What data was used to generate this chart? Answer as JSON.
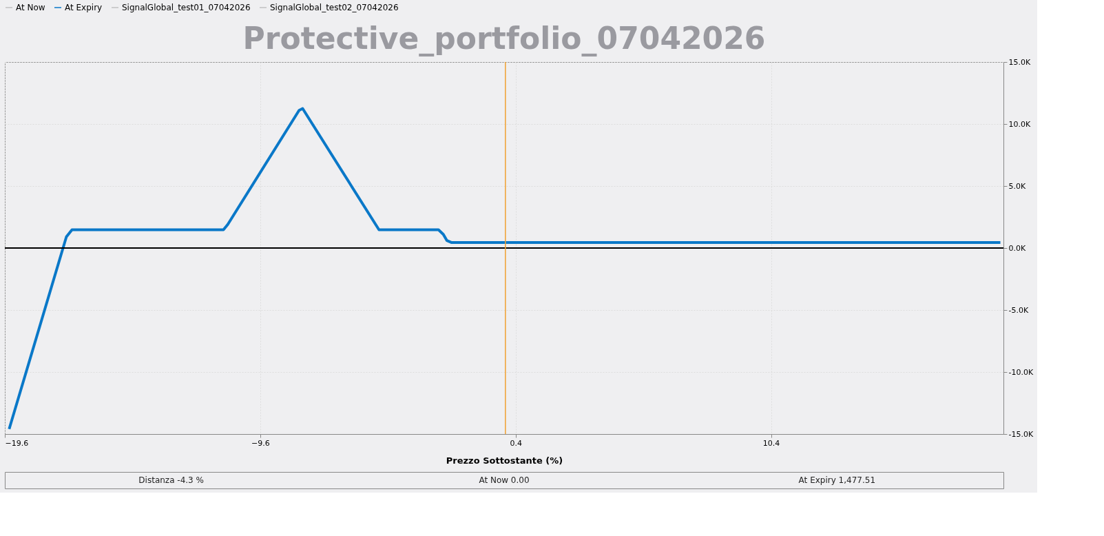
{
  "chart_data": {
    "type": "line",
    "title": "Protective_portfolio_07042026",
    "xlabel": "Prezzo Sottostante (%)",
    "series": [
      {
        "name": "At Now",
        "color": "#c0c0c0"
      },
      {
        "name": "At Expiry",
        "color": "#0a78c8",
        "x": [
          -19.43,
          -17.19,
          -16.97,
          -11.04,
          -10.87,
          -8.08,
          -7.94,
          -4.95,
          -2.62,
          -2.43,
          -2.29,
          -2.12,
          19.38
        ],
        "values": [
          -14600,
          900,
          1470,
          1470,
          1900,
          11100,
          11250,
          1470,
          1470,
          1100,
          600,
          450,
          450
        ]
      },
      {
        "name": "SignalGlobal_test01_07042026",
        "color": "#c0c0c0"
      },
      {
        "name": "SignalGlobal_test02_07042026",
        "color": "#c0c0c0"
      }
    ],
    "xlim": [
      -19.6,
      19.5
    ],
    "xticks": [
      -19.6,
      -9.6,
      0.4,
      10.4
    ],
    "ylim": [
      -15000,
      15000
    ],
    "yticks": [
      {
        "value": -15000,
        "label": "-15.0K"
      },
      {
        "value": -10000,
        "label": "-10.0K"
      },
      {
        "value": -5000,
        "label": "-5.0K"
      },
      {
        "value": 0,
        "label": "0.0K"
      },
      {
        "value": 5000,
        "label": "5.0K"
      },
      {
        "value": 10000,
        "label": "10.0K"
      },
      {
        "value": 15000,
        "label": "15.0K"
      }
    ],
    "grid": true,
    "legend": "top",
    "line_style": "solid",
    "marker": "none",
    "ref_lines": [
      {
        "axis": "y",
        "value": 0,
        "color": "#000000"
      },
      {
        "axis": "x",
        "value": 0.0,
        "color": "#f0a030"
      }
    ],
    "annotations": [
      "Distanza -4.3 %",
      "At Now 0.00",
      "At Expiry 1,477.51"
    ]
  }
}
